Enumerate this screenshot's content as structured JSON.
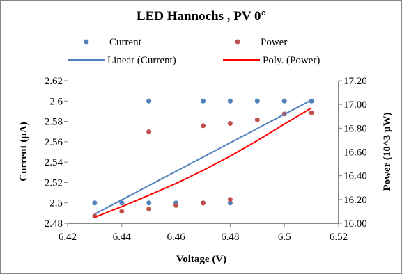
{
  "chart_data": {
    "type": "scatter",
    "title": "LED Hannochs , PV 0°",
    "xlabel": "Voltage (V)",
    "ylabel": "Current (µA)",
    "y2label": "Power (10^3 µW)",
    "xlim": [
      6.42,
      6.52
    ],
    "ylim": [
      2.48,
      2.62
    ],
    "y2lim": [
      16.0,
      17.2
    ],
    "x_ticks": [
      "6.42",
      "6.44",
      "6.46",
      "6.48",
      "6.5",
      "6.52"
    ],
    "y_ticks": [
      "2.48",
      "2.5",
      "2.52",
      "2.54",
      "2.56",
      "2.58",
      "2.6",
      "2.62"
    ],
    "y2_ticks": [
      "16.00",
      "16.20",
      "16.40",
      "16.60",
      "16.80",
      "17.00",
      "17.20"
    ],
    "grid": false,
    "legend_position": "top",
    "series": [
      {
        "name": "Current",
        "axis": "left",
        "kind": "scatter",
        "color": "#4f81bd",
        "points": [
          [
            6.43,
            2.5
          ],
          [
            6.44,
            2.5
          ],
          [
            6.45,
            2.5
          ],
          [
            6.45,
            2.6
          ],
          [
            6.46,
            2.5
          ],
          [
            6.47,
            2.5
          ],
          [
            6.47,
            2.6
          ],
          [
            6.48,
            2.5
          ],
          [
            6.48,
            2.6
          ],
          [
            6.49,
            2.6
          ],
          [
            6.5,
            2.6
          ],
          [
            6.51,
            2.6
          ]
        ]
      },
      {
        "name": "Power",
        "axis": "right",
        "kind": "scatter",
        "color": "#c0504d",
        "points": [
          [
            6.43,
            16.06
          ],
          [
            6.44,
            16.1
          ],
          [
            6.45,
            16.12
          ],
          [
            6.45,
            16.77
          ],
          [
            6.46,
            16.15
          ],
          [
            6.47,
            16.17
          ],
          [
            6.47,
            16.82
          ],
          [
            6.48,
            16.2
          ],
          [
            6.48,
            16.84
          ],
          [
            6.49,
            16.87
          ],
          [
            6.5,
            16.92
          ],
          [
            6.51,
            16.93
          ]
        ]
      },
      {
        "name": "Linear (Current)",
        "axis": "left",
        "kind": "line",
        "color": "#4f81bd",
        "points": [
          [
            6.43,
            2.489
          ],
          [
            6.51,
            2.601
          ]
        ]
      },
      {
        "name": "Poly. (Power)",
        "axis": "right",
        "kind": "line",
        "color": "#ff0000",
        "points": [
          [
            6.43,
            16.05
          ],
          [
            6.44,
            16.14
          ],
          [
            6.45,
            16.235
          ],
          [
            6.46,
            16.335
          ],
          [
            6.47,
            16.445
          ],
          [
            6.48,
            16.565
          ],
          [
            6.49,
            16.695
          ],
          [
            6.5,
            16.835
          ],
          [
            6.51,
            16.97
          ]
        ]
      }
    ]
  }
}
